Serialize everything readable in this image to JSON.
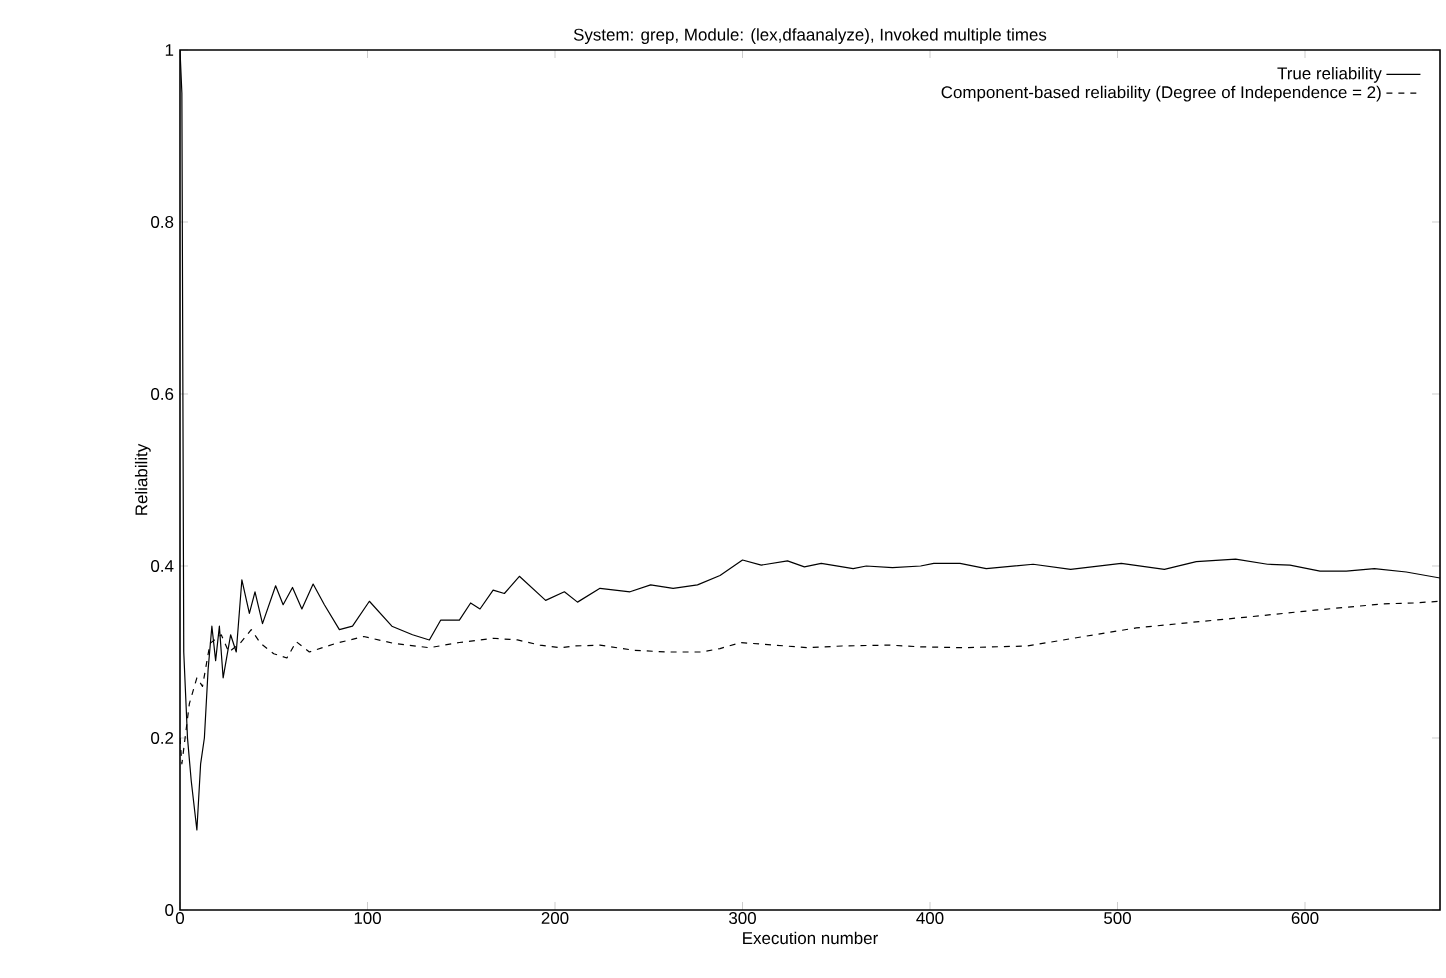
{
  "chart_data": {
    "type": "line",
    "title": "System: grep, Module: (lex,dfaanalyze), Invoked multiple times",
    "xlabel": "Execution number",
    "ylabel": "Reliability",
    "xlim": [
      0,
      672
    ],
    "ylim": [
      0,
      1
    ],
    "xticks": [
      0,
      100,
      200,
      300,
      400,
      500,
      600
    ],
    "yticks": [
      0,
      0.2,
      0.4,
      0.6,
      0.8,
      1
    ],
    "legend": "top right",
    "series": [
      {
        "name": "True reliability",
        "color": "#000000",
        "line_style": "solid",
        "x": [
          0,
          1,
          2,
          4,
          6,
          9,
          11,
          13,
          15,
          17,
          19,
          21,
          23,
          27,
          30,
          33,
          37,
          40,
          44,
          51,
          55,
          60,
          65,
          71,
          77,
          85,
          92,
          101,
          113,
          124,
          133,
          139,
          149,
          155,
          160,
          167,
          173,
          181,
          195,
          205,
          212,
          224,
          240,
          251,
          263,
          276,
          288,
          300,
          310,
          324,
          333,
          342,
          359,
          366,
          380,
          395,
          402,
          416,
          430,
          455,
          475,
          502,
          525,
          542,
          563,
          580,
          592,
          608,
          622,
          637,
          654,
          672
        ],
        "values": [
          1.0,
          0.95,
          0.3,
          0.2,
          0.15,
          0.093,
          0.17,
          0.2,
          0.28,
          0.33,
          0.29,
          0.33,
          0.27,
          0.32,
          0.3,
          0.384,
          0.345,
          0.37,
          0.333,
          0.377,
          0.355,
          0.375,
          0.35,
          0.379,
          0.355,
          0.326,
          0.33,
          0.359,
          0.33,
          0.32,
          0.314,
          0.337,
          0.337,
          0.357,
          0.35,
          0.372,
          0.368,
          0.388,
          0.36,
          0.37,
          0.358,
          0.374,
          0.37,
          0.378,
          0.374,
          0.378,
          0.389,
          0.407,
          0.401,
          0.406,
          0.399,
          0.403,
          0.397,
          0.4,
          0.398,
          0.4,
          0.403,
          0.403,
          0.397,
          0.402,
          0.396,
          0.403,
          0.396,
          0.405,
          0.408,
          0.402,
          0.401,
          0.394,
          0.394,
          0.397,
          0.393,
          0.386
        ]
      },
      {
        "name": "Component-based reliability (Degree of Independence = 2)",
        "color": "#000000",
        "line_style": "dashed",
        "x": [
          0,
          1,
          5,
          9,
          12,
          16,
          22,
          26,
          32,
          38,
          43,
          50,
          57,
          62,
          69,
          83,
          98,
          114,
          133,
          149,
          167,
          180,
          192,
          203,
          210,
          224,
          242,
          260,
          278,
          288,
          299,
          317,
          335,
          353,
          378,
          395,
          418,
          452,
          482,
          510,
          542,
          571,
          607,
          642,
          658,
          672
        ],
        "values": [
          0.2,
          0.17,
          0.24,
          0.27,
          0.26,
          0.31,
          0.32,
          0.3,
          0.31,
          0.326,
          0.31,
          0.298,
          0.293,
          0.312,
          0.3,
          0.31,
          0.318,
          0.31,
          0.305,
          0.311,
          0.316,
          0.314,
          0.308,
          0.305,
          0.307,
          0.308,
          0.302,
          0.3,
          0.3,
          0.304,
          0.311,
          0.308,
          0.305,
          0.307,
          0.308,
          0.306,
          0.305,
          0.307,
          0.318,
          0.328,
          0.335,
          0.341,
          0.349,
          0.356,
          0.357,
          0.359
        ]
      }
    ]
  }
}
